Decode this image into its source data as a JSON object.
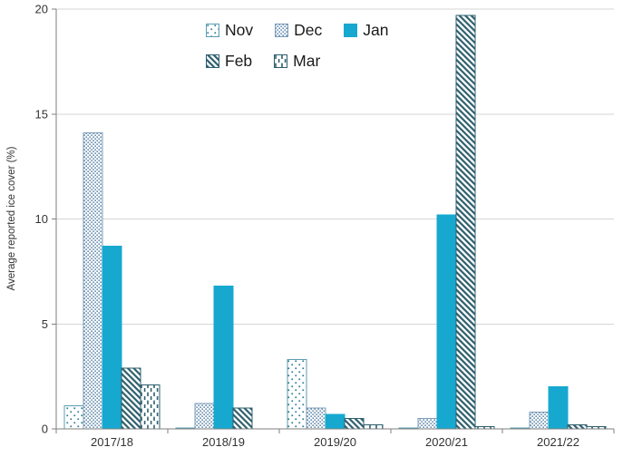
{
  "colors": {
    "jan_solid": "#17a8d0",
    "teal_dark": "#2e5f6e",
    "teal_dot": "#2e7d91",
    "teal_border_light": "#5b9fb2",
    "steel_dot": "#4d7aa1",
    "steel_border": "#7d9cba",
    "grid": "#d6d6d6",
    "axis": "#7f7f7f",
    "text": "#333333"
  },
  "chart_data": {
    "type": "bar",
    "title": "",
    "xlabel": "",
    "ylabel": "Average reported ice cover (%)",
    "ylim": [
      0,
      20
    ],
    "yticks": [
      0,
      5,
      10,
      15,
      20
    ],
    "grid": true,
    "legend_position": "top-center",
    "categories": [
      "2017/18",
      "2018/19",
      "2019/20",
      "2020/21",
      "2021/22"
    ],
    "series": [
      {
        "name": "Nov",
        "pattern": "sparse-dots",
        "values": [
          1.1,
          0.05,
          3.3,
          0.05,
          0.05
        ]
      },
      {
        "name": "Dec",
        "pattern": "dense-dots",
        "values": [
          14.1,
          1.2,
          1.0,
          0.5,
          0.8
        ]
      },
      {
        "name": "Jan",
        "pattern": "solid",
        "values": [
          8.7,
          6.8,
          0.7,
          10.2,
          2.0
        ]
      },
      {
        "name": "Feb",
        "pattern": "diag-stripes",
        "values": [
          2.9,
          1.0,
          0.5,
          19.7,
          0.2
        ]
      },
      {
        "name": "Mar",
        "pattern": "vert-dashes",
        "values": [
          2.1,
          0,
          0.2,
          0.1,
          0.1
        ]
      }
    ]
  }
}
